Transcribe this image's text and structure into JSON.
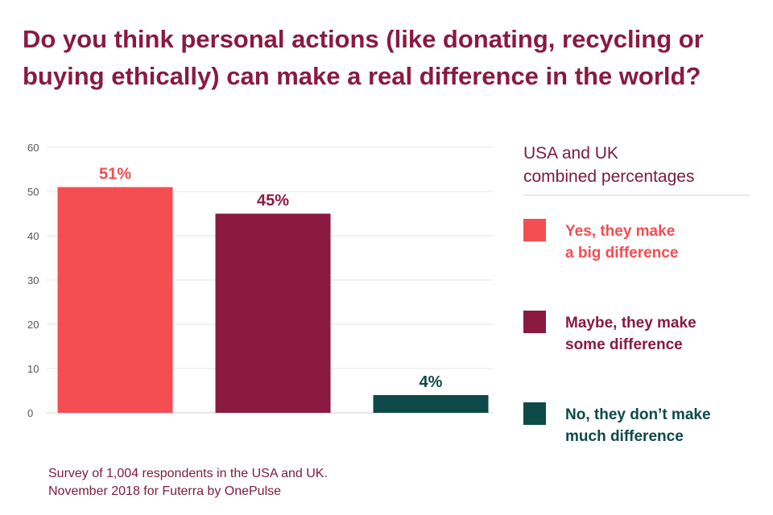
{
  "title_lines": [
    "Do you think personal actions (like donating, recycling or",
    "buying ethically) can make a real difference in the world?"
  ],
  "legend_title_lines": [
    "USA and UK",
    "combined percentages"
  ],
  "legend": [
    {
      "lines": [
        "Yes, they make",
        "a big difference"
      ],
      "color": "#f44d52"
    },
    {
      "lines": [
        "Maybe, they make",
        "some difference"
      ],
      "color": "#8a1a3f"
    },
    {
      "lines": [
        "No,  they don’t make",
        "much difference"
      ],
      "color": "#0e4a47"
    }
  ],
  "footnote_lines": [
    "Survey of 1,004 respondents in the USA and UK.",
    "November 2018 for Futerra by OnePulse"
  ],
  "chart_data": {
    "type": "bar",
    "categories": [
      "Yes, they make a big difference",
      "Maybe, they make some difference",
      "No,  they don’t make much difference"
    ],
    "values": [
      51,
      45,
      4
    ],
    "data_labels": [
      "51%",
      "45%",
      "4%"
    ],
    "colors": [
      "#f44d52",
      "#8a1a3f",
      "#0e4a47"
    ],
    "ylim": [
      0,
      60
    ],
    "yticks": [
      "0",
      "10",
      "20",
      "30",
      "40",
      "50",
      "60"
    ],
    "grid": true,
    "legend_position": "right",
    "title": "Do you think personal actions (like donating, recycling or buying ethically) can make a real difference in the world?",
    "xlabel": "",
    "ylabel": ""
  }
}
